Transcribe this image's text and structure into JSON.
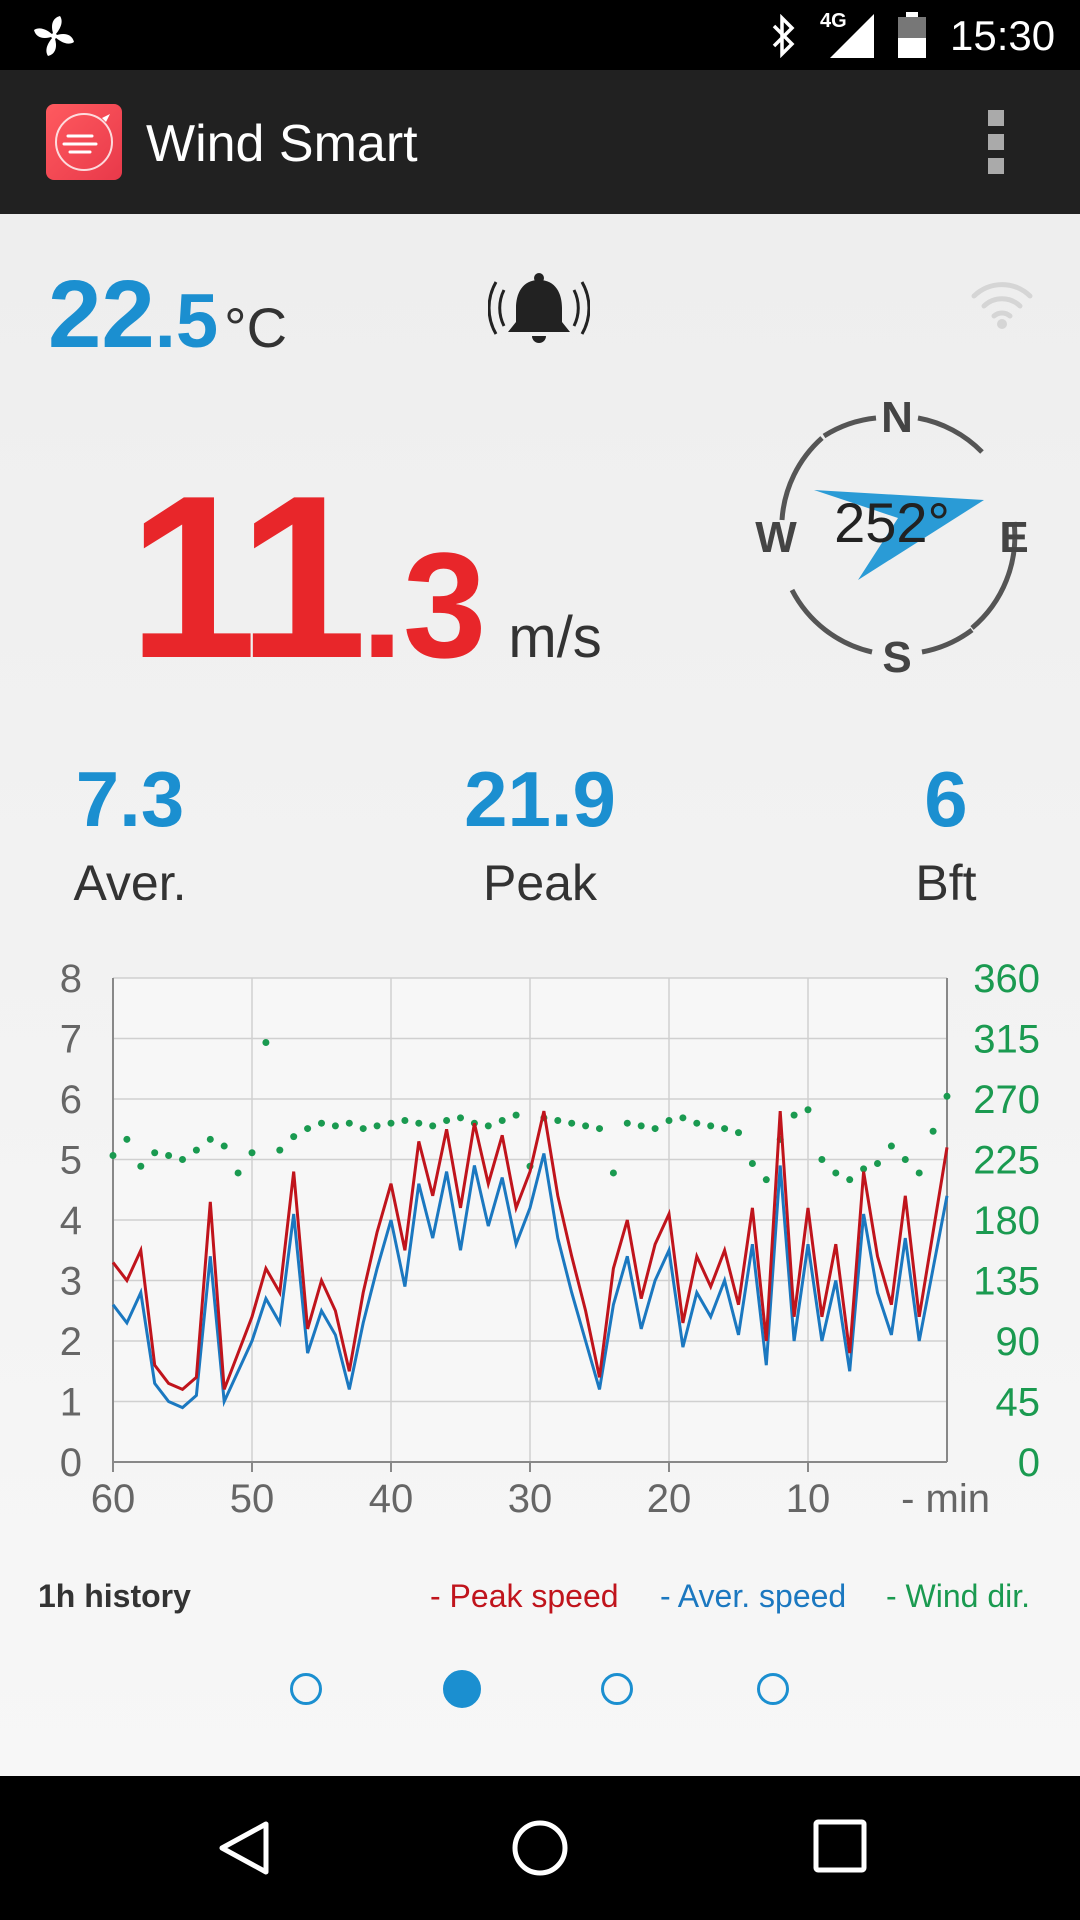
{
  "status_bar": {
    "time": "15:30",
    "network": "4G",
    "icons": [
      "fan-icon",
      "bluetooth-icon",
      "signal-icon",
      "battery-icon"
    ]
  },
  "app_bar": {
    "title": "Wind Smart",
    "icons": [
      "app-logo-icon",
      "overflow-menu-icon"
    ]
  },
  "temperature": {
    "integer": "22",
    "decimal": ".5",
    "unit": "°C"
  },
  "alarm_icon": "bell-ringing-icon",
  "connection_icon": "wifi-icon",
  "wind_speed": {
    "integer": "11",
    "decimal": ".3",
    "unit": "m/s"
  },
  "compass": {
    "north": "N",
    "east": "E",
    "south": "S",
    "west": "W",
    "direction_label": "252°",
    "direction_degrees": 252
  },
  "stats": [
    {
      "value": "7.3",
      "label": "Aver."
    },
    {
      "value": "21.9",
      "label": "Peak"
    },
    {
      "value": "6",
      "label": "Bft"
    }
  ],
  "chart_data": {
    "type": "line",
    "x_label": "- min",
    "x_ticks": [
      "60",
      "50",
      "40",
      "30",
      "20",
      "10"
    ],
    "x_range": [
      60,
      0
    ],
    "y_left_ticks": [
      "0",
      "1",
      "2",
      "3",
      "4",
      "5",
      "6",
      "7",
      "8"
    ],
    "y_left_range": [
      0,
      8
    ],
    "y_right_ticks": [
      "0",
      "45",
      "90",
      "135",
      "180",
      "225",
      "270",
      "315",
      "360"
    ],
    "y_right_range": [
      0,
      360
    ],
    "grid": true,
    "colors": {
      "peak": "#c0141c",
      "aver": "#1b78c0",
      "dir": "#1a9a50"
    },
    "x": [
      60,
      59,
      58,
      57,
      56,
      55,
      54,
      53,
      52,
      51,
      50,
      49,
      48,
      47,
      46,
      45,
      44,
      43,
      42,
      41,
      40,
      39,
      38,
      37,
      36,
      35,
      34,
      33,
      32,
      31,
      30,
      29,
      28,
      27,
      26,
      25,
      24,
      23,
      22,
      21,
      20,
      19,
      18,
      17,
      16,
      15,
      14,
      13,
      12,
      11,
      10,
      9,
      8,
      7,
      6,
      5,
      4,
      3,
      2,
      1,
      0
    ],
    "series": [
      {
        "name": "Peak speed",
        "values": [
          3.3,
          3.0,
          3.5,
          1.6,
          1.3,
          1.2,
          1.4,
          4.3,
          1.2,
          1.8,
          2.4,
          3.2,
          2.8,
          4.8,
          2.2,
          3.0,
          2.5,
          1.5,
          2.8,
          3.8,
          4.6,
          3.5,
          5.3,
          4.4,
          5.5,
          4.2,
          5.6,
          4.6,
          5.4,
          4.2,
          4.8,
          5.8,
          4.4,
          3.4,
          2.5,
          1.4,
          3.2,
          4.0,
          2.7,
          3.6,
          4.1,
          2.3,
          3.4,
          2.9,
          3.5,
          2.6,
          4.2,
          2.0,
          5.8,
          2.4,
          4.2,
          2.4,
          3.6,
          1.8,
          4.8,
          3.4,
          2.6,
          4.4,
          2.4,
          3.8,
          5.2
        ]
      },
      {
        "name": "Aver. speed",
        "values": [
          2.6,
          2.3,
          2.8,
          1.3,
          1.0,
          0.9,
          1.1,
          3.4,
          1.0,
          1.5,
          2.0,
          2.7,
          2.3,
          4.1,
          1.8,
          2.5,
          2.1,
          1.2,
          2.3,
          3.2,
          4.0,
          2.9,
          4.6,
          3.7,
          4.8,
          3.5,
          4.9,
          3.9,
          4.7,
          3.6,
          4.2,
          5.1,
          3.7,
          2.8,
          2.0,
          1.2,
          2.6,
          3.4,
          2.2,
          3.0,
          3.5,
          1.9,
          2.8,
          2.4,
          3.0,
          2.1,
          3.6,
          1.6,
          4.9,
          2.0,
          3.6,
          2.0,
          3.0,
          1.5,
          4.1,
          2.8,
          2.1,
          3.7,
          2.0,
          3.2,
          4.4
        ]
      },
      {
        "name": "Wind dir.",
        "values": [
          228,
          240,
          220,
          230,
          228,
          225,
          232,
          240,
          235,
          215,
          230,
          312,
          232,
          242,
          248,
          252,
          250,
          252,
          248,
          250,
          252,
          254,
          252,
          250,
          254,
          256,
          252,
          250,
          254,
          258,
          220,
          256,
          254,
          252,
          250,
          248,
          215,
          252,
          250,
          248,
          254,
          256,
          252,
          250,
          248,
          245,
          222,
          210,
          240,
          258,
          262,
          225,
          215,
          210,
          218,
          222,
          235,
          225,
          215,
          246,
          272
        ]
      }
    ]
  },
  "legend": {
    "title": "1h history",
    "peak": "- Peak speed",
    "aver": "- Aver. speed",
    "dir": "- Wind dir."
  },
  "pager": {
    "count": 4,
    "active": 1
  },
  "nav_bar": {
    "icons": [
      "back-icon",
      "home-icon",
      "recents-icon"
    ]
  }
}
